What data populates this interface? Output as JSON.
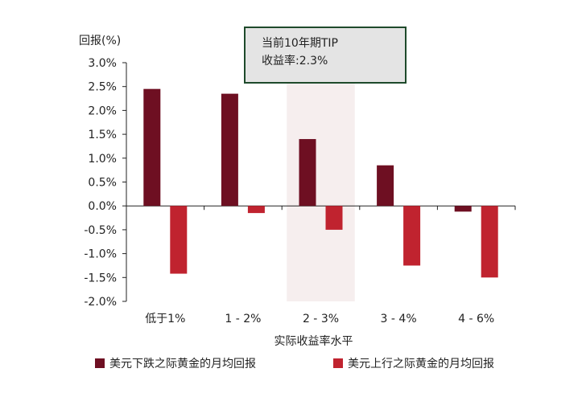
{
  "chart_data": {
    "type": "bar",
    "ylabel": "回报(%)",
    "xlabel": "实际收益率水平",
    "categories": [
      "低于1%",
      "1 - 2%",
      "2 - 3%",
      "3 - 4%",
      "4 - 6%"
    ],
    "ylim": [
      -2.0,
      3.0
    ],
    "yticks": [
      3.0,
      2.5,
      2.0,
      1.5,
      1.0,
      0.5,
      0.0,
      -0.5,
      -1.0,
      -1.5,
      -2.0
    ],
    "ytick_labels": [
      "3.0%",
      "2.5%",
      "2.0%",
      "1.5%",
      "1.0%",
      "0.5%",
      "0.0%",
      "-0.5%",
      "-1.0%",
      "-1.5%",
      "-2.0%"
    ],
    "highlight_category": "2 - 3%",
    "series": [
      {
        "name": "美元下跌之际黄金的月均回报",
        "color": "#6e0f22",
        "values": [
          2.45,
          2.35,
          1.4,
          0.85,
          -0.12
        ]
      },
      {
        "name": "美元上行之际黄金的月均回报",
        "color": "#c0232f",
        "values": [
          -1.42,
          -0.15,
          -0.5,
          -1.25,
          -1.5
        ]
      }
    ],
    "annotation": {
      "line1": "当前10年期TIP",
      "line2": "收益率:2.3%"
    }
  }
}
